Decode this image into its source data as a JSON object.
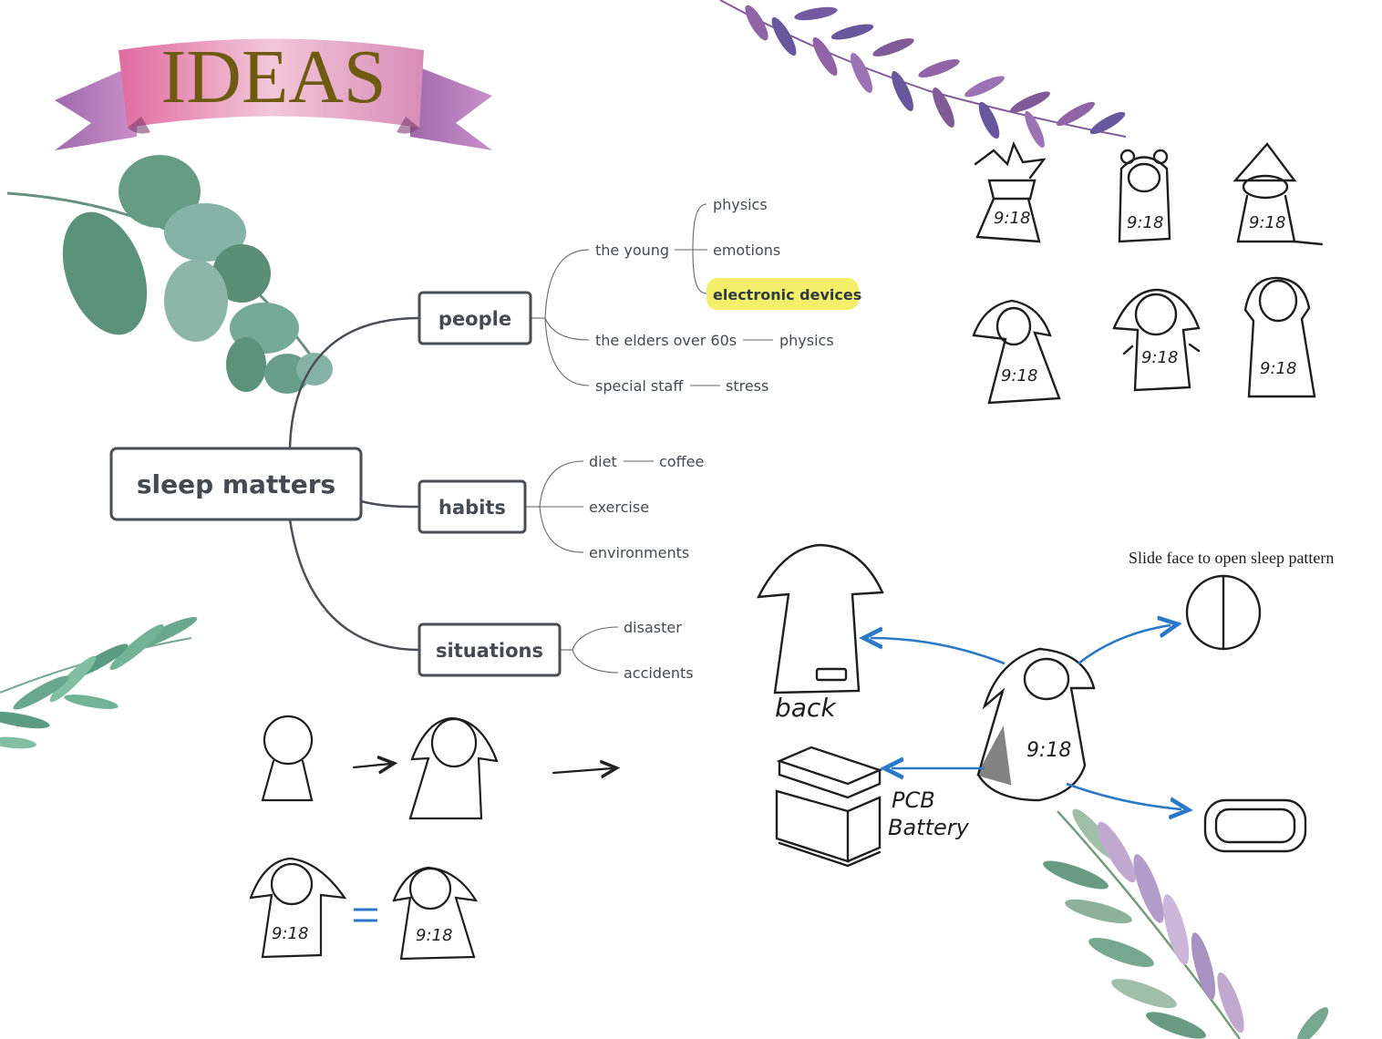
{
  "banner": {
    "title": "IDEAS"
  },
  "mindmap": {
    "root": "sleep matters",
    "branches": {
      "people": {
        "label": "people",
        "the_young": {
          "label": "the young",
          "children": [
            "physics",
            "emotions",
            "electronic devices"
          ]
        },
        "elders": {
          "label": "the elders over 60s",
          "child": "physics"
        },
        "special": {
          "label": "special staff",
          "child": "stress"
        }
      },
      "habits": {
        "label": "habits",
        "diet": {
          "label": "diet",
          "child": "coffee"
        },
        "exercise": "exercise",
        "environments": "environments"
      },
      "situations": {
        "label": "situations",
        "disaster": "disaster",
        "accidents": "accidents"
      }
    }
  },
  "sketches": {
    "clock_time": "9:18",
    "back_label": "back",
    "pcb_label": "PCB",
    "battery_label": "Battery",
    "slide_caption": "Slide face to open sleep pattern"
  },
  "colors": {
    "node_border": "#4a4f55",
    "text": "#444a50",
    "highlight": "#f3ef6a",
    "arrow_blue": "#2a78c8",
    "banner_pink": "#e9a0c0",
    "banner_purple": "#9b58a6",
    "title_gold": "#6f5a12",
    "leaf_green": "#3f8a6e",
    "leaf_purple": "#6b3f86"
  }
}
